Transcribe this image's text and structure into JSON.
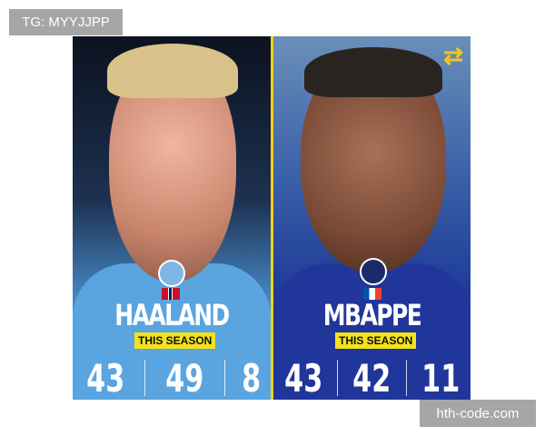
{
  "watermarks": {
    "top_left": "TG: MYYJJPP",
    "bottom_right": "hth-code.com"
  },
  "players": [
    {
      "name": "HAALAND",
      "badge": "this-season",
      "season_label": "THIS SEASON",
      "stats": [
        "43",
        "49",
        "8"
      ],
      "club": "manchester-city-crest",
      "flag": "norway-flag",
      "shirt_color": "#5aa4e0"
    },
    {
      "name": "MBAPPE",
      "season_label": "THIS SEASON",
      "stats": [
        "43",
        "42",
        "11"
      ],
      "club": "psg-crest",
      "flag": "france-flag",
      "shirt_color": "#20369a"
    }
  ],
  "swap_icon": "swap-arrows-icon",
  "accent": "#f4e21a"
}
